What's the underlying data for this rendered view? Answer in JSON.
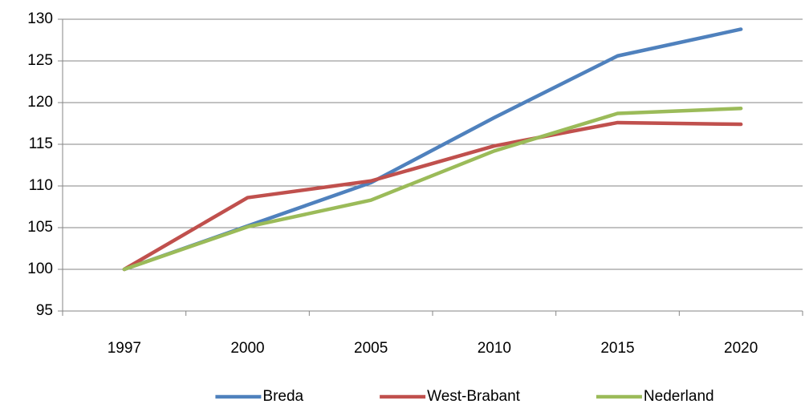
{
  "chart_data": {
    "type": "line",
    "categories": [
      "1997",
      "2000",
      "2005",
      "2010",
      "2015",
      "2020"
    ],
    "series": [
      {
        "name": "Breda",
        "color": "#4f81bd",
        "values": [
          100,
          105.2,
          110.4,
          118.2,
          125.6,
          128.8
        ]
      },
      {
        "name": "West-Brabant",
        "color": "#c0504d",
        "values": [
          100,
          108.6,
          110.6,
          114.8,
          117.6,
          117.4
        ]
      },
      {
        "name": "Nederland",
        "color": "#9bbb59",
        "values": [
          100,
          105.1,
          108.3,
          114.2,
          118.7,
          119.3
        ]
      }
    ],
    "ylim": [
      95,
      130
    ],
    "yticks": [
      95,
      100,
      105,
      110,
      115,
      120,
      125,
      130
    ],
    "grid": true,
    "legend": "bottom"
  }
}
